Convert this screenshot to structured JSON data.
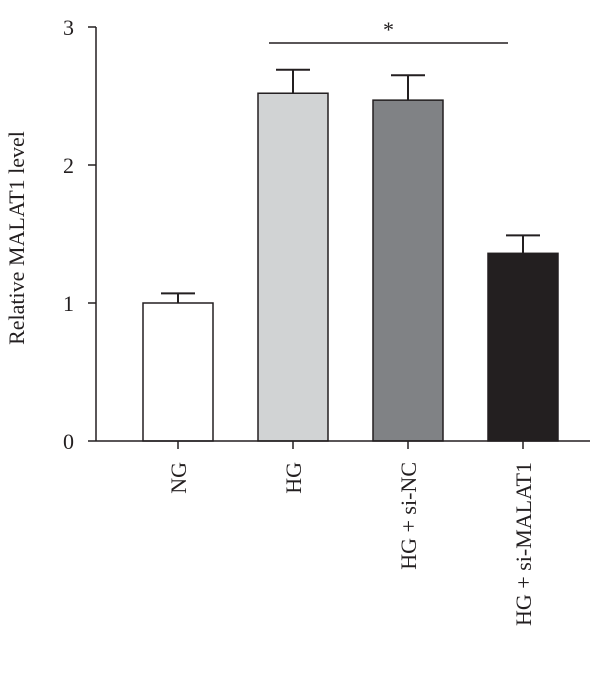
{
  "chart_data": {
    "type": "bar",
    "categories": [
      "NG",
      "HG",
      "HG + si-NC",
      "HG + si-MALAT1"
    ],
    "values": [
      1.0,
      2.52,
      2.47,
      1.36
    ],
    "errors": [
      0.07,
      0.17,
      0.18,
      0.13
    ],
    "bar_colors": [
      "#ffffff",
      "#d1d3d4",
      "#808285",
      "#231f20"
    ],
    "edge_color": "#231f20",
    "ylabel": "Relative MALAT1 level",
    "xlabel": "",
    "ylim": [
      0,
      3
    ],
    "yticks": [
      "0",
      "1",
      "2",
      "3"
    ],
    "significance": {
      "from": "HG",
      "to": "HG + si-MALAT1",
      "label": "*"
    },
    "grid": false,
    "legend": "none"
  }
}
